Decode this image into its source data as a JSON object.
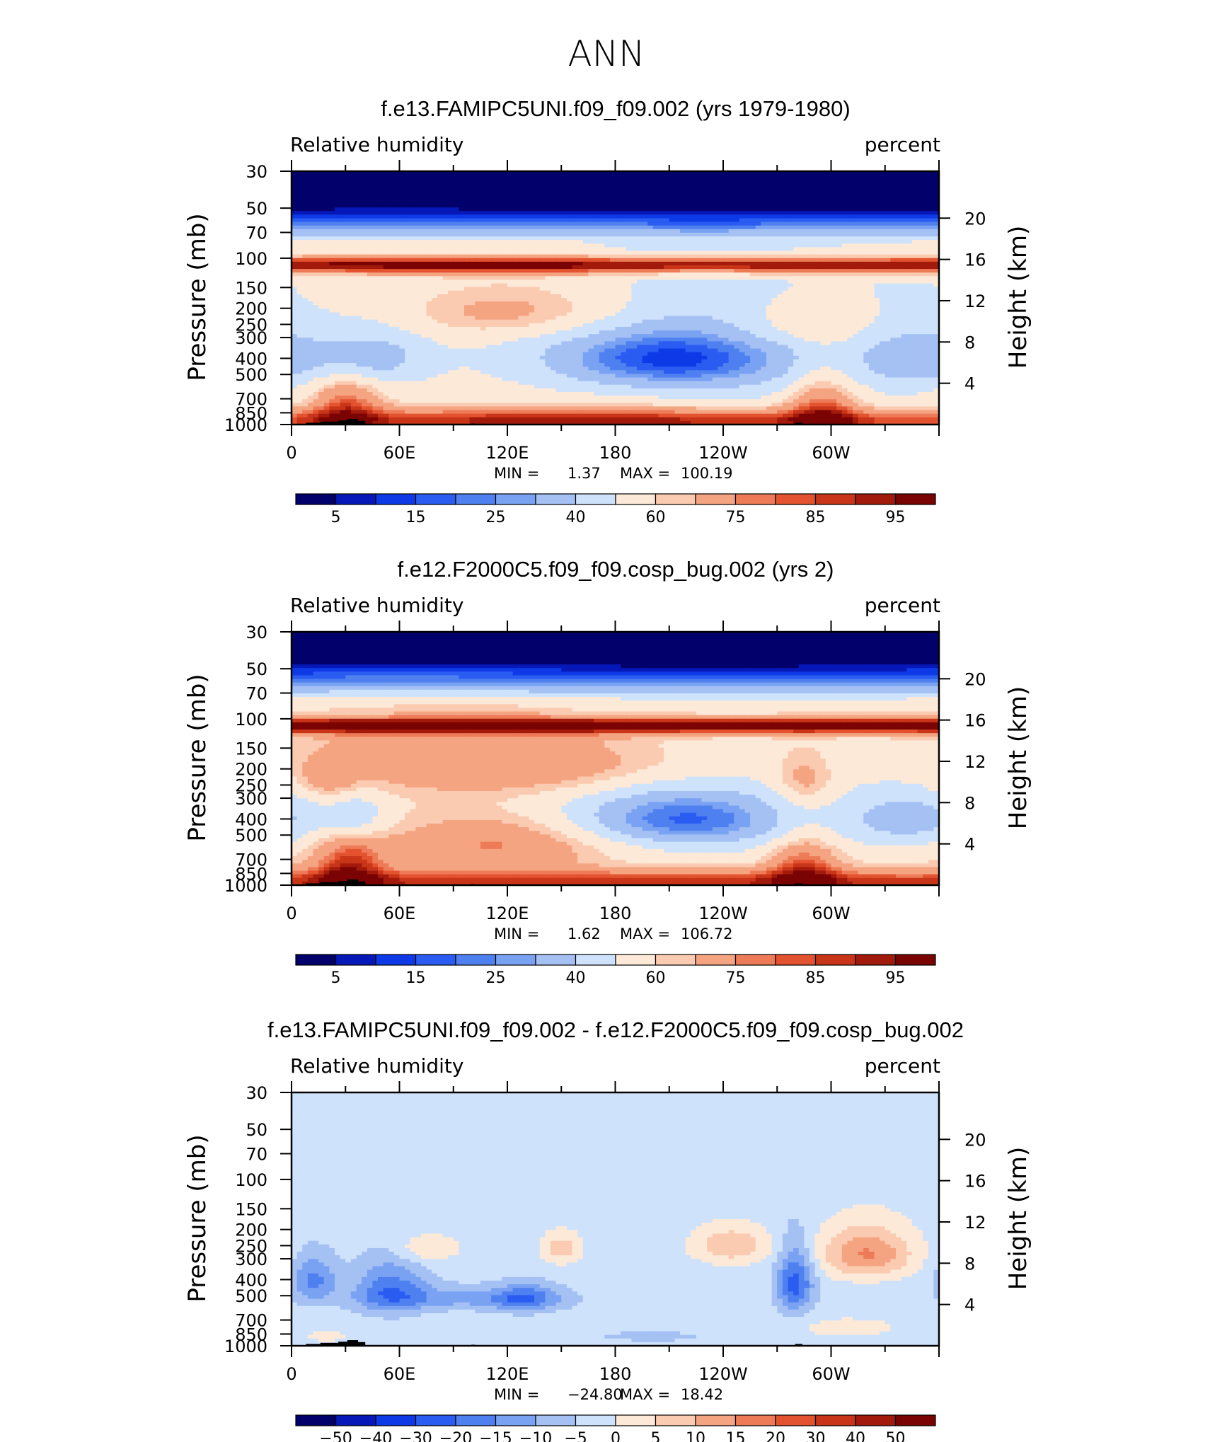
{
  "figure_title": "ANN",
  "colors": {
    "rh": [
      "#02006a",
      "#0618b8",
      "#0d3ae6",
      "#2a5cf2",
      "#4f80f0",
      "#7aa2f2",
      "#a5c1f4",
      "#cfe2fb",
      "#fde9d8",
      "#fbcbb1",
      "#f5a482",
      "#ee7b57",
      "#e3532f",
      "#c93518",
      "#a21a0b",
      "#7a0303"
    ],
    "diff": [
      "#02006a",
      "#0618b8",
      "#0d3ae6",
      "#2a5cf2",
      "#4f80f0",
      "#7aa2f2",
      "#a5c1f4",
      "#cfe2fb",
      "#fde9d8",
      "#fbcbb1",
      "#f5a482",
      "#ee7b57",
      "#e3532f",
      "#c93518",
      "#a21a0b",
      "#7a0303"
    ],
    "topo": "#000000"
  },
  "chart_data": [
    {
      "type": "heatmap",
      "name": "panel-1",
      "title": "f.e13.FAMIPC5UNI.f09_f09.002 (yrs 1979-1980)",
      "variable": "Relative humidity",
      "units": "percent",
      "ylabel": "Pressure (mb)",
      "ylabel_right": "Height (km)",
      "pressure_ticks": [
        30,
        50,
        70,
        100,
        150,
        200,
        250,
        300,
        400,
        500,
        700,
        850,
        1000
      ],
      "pressure_tick_labels": [
        "30",
        "50",
        "70",
        "100",
        "150",
        "200",
        "250",
        "300",
        "400",
        "500",
        "700",
        "850",
        "1000"
      ],
      "height_ticks": [
        20,
        16,
        12,
        8,
        4
      ],
      "height_tick_labels": [
        "20",
        "16",
        "12",
        "8",
        "4"
      ],
      "lon_ticks": [
        0,
        60,
        120,
        180,
        240,
        300
      ],
      "lon_tick_labels": [
        "0",
        "60E",
        "120E",
        "180",
        "120W",
        "60W"
      ],
      "xlim": [
        0,
        360
      ],
      "ylim": [
        1000,
        30
      ],
      "min_label": "MIN =",
      "min_value": "1.37",
      "max_label": "MAX =",
      "max_value": "100.19",
      "levels": [
        5,
        10,
        15,
        20,
        25,
        30,
        40,
        50,
        60,
        65,
        75,
        80,
        85,
        90,
        95
      ],
      "colorbar_labels": [
        "5",
        "15",
        "25",
        "40",
        "60",
        "75",
        "85",
        "95"
      ],
      "colorbar_label_idx": [
        0,
        2,
        4,
        6,
        8,
        10,
        12,
        14
      ],
      "palette": "rh",
      "field": {
        "base": 52,
        "features": [
          {
            "lon": 210,
            "p": 400,
            "slon": 45,
            "sp": 120,
            "amp": -32
          },
          {
            "lon": 210,
            "p": 430,
            "slon": 95,
            "sp": 260,
            "amp": -10
          },
          {
            "lon": 42,
            "p": 400,
            "slon": 22,
            "sp": 110,
            "amp": -20
          },
          {
            "lon": 348,
            "p": 400,
            "slon": 22,
            "sp": 110,
            "amp": -18
          },
          {
            "lon": 125,
            "p": 600,
            "slon": 70,
            "sp": 300,
            "amp": 6
          },
          {
            "lon": 128,
            "p": 210,
            "slon": 50,
            "sp": 60,
            "amp": 18
          },
          {
            "lon": 285,
            "p": 250,
            "slon": 30,
            "sp": 60,
            "amp": 12
          },
          {
            "lon": 180,
            "p": 960,
            "slon": 360,
            "sp": 110,
            "amp": 34
          },
          {
            "lon": 30,
            "p": 780,
            "slon": 14,
            "sp": 220,
            "amp": 26
          },
          {
            "lon": 295,
            "p": 800,
            "slon": 14,
            "sp": 240,
            "amp": 28
          },
          {
            "lon": 170,
            "p": 900,
            "slon": 60,
            "sp": 120,
            "amp": 8
          }
        ],
        "trop_p": 110,
        "trop_amp": 45
      }
    },
    {
      "type": "heatmap",
      "name": "panel-2",
      "title": "f.e12.F2000C5.f09_f09.cosp_bug.002 (yrs 2)",
      "variable": "Relative humidity",
      "units": "percent",
      "ylabel": "Pressure (mb)",
      "ylabel_right": "Height (km)",
      "pressure_ticks": [
        30,
        50,
        70,
        100,
        150,
        200,
        250,
        300,
        400,
        500,
        700,
        850,
        1000
      ],
      "pressure_tick_labels": [
        "30",
        "50",
        "70",
        "100",
        "150",
        "200",
        "250",
        "300",
        "400",
        "500",
        "700",
        "850",
        "1000"
      ],
      "height_ticks": [
        20,
        16,
        12,
        8,
        4
      ],
      "height_tick_labels": [
        "20",
        "16",
        "12",
        "8",
        "4"
      ],
      "lon_ticks": [
        0,
        60,
        120,
        180,
        240,
        300
      ],
      "lon_tick_labels": [
        "0",
        "60E",
        "120E",
        "180",
        "120W",
        "60W"
      ],
      "xlim": [
        0,
        360
      ],
      "ylim": [
        1000,
        30
      ],
      "min_label": "MIN =",
      "min_value": "1.62",
      "max_label": "MAX =",
      "max_value": "106.72",
      "levels": [
        5,
        10,
        15,
        20,
        25,
        30,
        40,
        50,
        60,
        65,
        75,
        80,
        85,
        90,
        95
      ],
      "colorbar_labels": [
        "5",
        "15",
        "25",
        "40",
        "60",
        "75",
        "85",
        "95"
      ],
      "colorbar_label_idx": [
        0,
        2,
        4,
        6,
        8,
        10,
        12,
        14
      ],
      "palette": "rh",
      "field": {
        "base": 58,
        "features": [
          {
            "lon": 218,
            "p": 400,
            "slon": 42,
            "sp": 110,
            "amp": -30
          },
          {
            "lon": 218,
            "p": 420,
            "slon": 90,
            "sp": 250,
            "amp": -10
          },
          {
            "lon": 36,
            "p": 390,
            "slon": 12,
            "sp": 90,
            "amp": -18
          },
          {
            "lon": 345,
            "p": 400,
            "slon": 25,
            "sp": 110,
            "amp": -20
          },
          {
            "lon": 118,
            "p": 560,
            "slon": 45,
            "sp": 150,
            "amp": 22
          },
          {
            "lon": 130,
            "p": 190,
            "slon": 75,
            "sp": 60,
            "amp": 20
          },
          {
            "lon": 20,
            "p": 230,
            "slon": 12,
            "sp": 50,
            "amp": 14
          },
          {
            "lon": 285,
            "p": 240,
            "slon": 12,
            "sp": 60,
            "amp": 14
          },
          {
            "lon": 180,
            "p": 960,
            "slon": 360,
            "sp": 110,
            "amp": 32
          },
          {
            "lon": 32,
            "p": 780,
            "slon": 14,
            "sp": 220,
            "amp": 28
          },
          {
            "lon": 285,
            "p": 780,
            "slon": 14,
            "sp": 230,
            "amp": 26
          }
        ],
        "trop_p": 110,
        "trop_amp": 45
      }
    },
    {
      "type": "heatmap",
      "name": "panel-3",
      "title": "f.e13.FAMIPC5UNI.f09_f09.002 - f.e12.F2000C5.f09_f09.cosp_bug.002",
      "variable": "Relative humidity",
      "units": "percent",
      "ylabel": "Pressure (mb)",
      "ylabel_right": "Height (km)",
      "pressure_ticks": [
        30,
        50,
        70,
        100,
        150,
        200,
        250,
        300,
        400,
        500,
        700,
        850,
        1000
      ],
      "pressure_tick_labels": [
        "30",
        "50",
        "70",
        "100",
        "150",
        "200",
        "250",
        "300",
        "400",
        "500",
        "700",
        "850",
        "1000"
      ],
      "height_ticks": [
        20,
        16,
        12,
        8,
        4
      ],
      "height_tick_labels": [
        "20",
        "16",
        "12",
        "8",
        "4"
      ],
      "lon_ticks": [
        0,
        60,
        120,
        180,
        240,
        300
      ],
      "lon_tick_labels": [
        "0",
        "60E",
        "120E",
        "180",
        "120W",
        "60W"
      ],
      "xlim": [
        0,
        360
      ],
      "ylim": [
        1000,
        30
      ],
      "min_label": "MIN =",
      "min_value": "−24.80",
      "max_label": "MAX =",
      "max_value": "18.42",
      "levels": [
        -50,
        -40,
        -30,
        -20,
        -15,
        -10,
        -5,
        0,
        5,
        10,
        15,
        20,
        30,
        40,
        50
      ],
      "colorbar_labels": [
        "−50",
        "−40",
        "−30",
        "−20",
        "−15",
        "−10",
        "−5",
        "0",
        "5",
        "10",
        "15",
        "20",
        "30",
        "40",
        "50"
      ],
      "colorbar_label_idx": [
        0,
        1,
        2,
        3,
        4,
        5,
        6,
        7,
        8,
        9,
        10,
        11,
        12,
        13,
        14
      ],
      "palette": "diff",
      "field": {
        "base": -2.5,
        "features": [
          {
            "lon": 280,
            "p": 420,
            "slon": 7,
            "sp": 130,
            "amp": -20
          },
          {
            "lon": 55,
            "p": 460,
            "slon": 14,
            "sp": 120,
            "amp": -15
          },
          {
            "lon": 130,
            "p": 520,
            "slon": 12,
            "sp": 70,
            "amp": -14
          },
          {
            "lon": 95,
            "p": 520,
            "slon": 40,
            "sp": 60,
            "amp": -9
          },
          {
            "lon": 12,
            "p": 400,
            "slon": 9,
            "sp": 90,
            "amp": -14
          },
          {
            "lon": 320,
            "p": 280,
            "slon": 18,
            "sp": 70,
            "amp": 18
          },
          {
            "lon": 245,
            "p": 250,
            "slon": 15,
            "sp": 45,
            "amp": 12
          },
          {
            "lon": 75,
            "p": 260,
            "slon": 12,
            "sp": 35,
            "amp": 8
          },
          {
            "lon": 150,
            "p": 260,
            "slon": 8,
            "sp": 40,
            "amp": 10
          },
          {
            "lon": 200,
            "p": 880,
            "slon": 20,
            "sp": 40,
            "amp": -6
          },
          {
            "lon": 310,
            "p": 780,
            "slon": 20,
            "sp": 80,
            "amp": 5
          },
          {
            "lon": 20,
            "p": 880,
            "slon": 8,
            "sp": 40,
            "amp": 6
          }
        ],
        "trop_p": 110,
        "trop_amp": 0
      }
    }
  ]
}
